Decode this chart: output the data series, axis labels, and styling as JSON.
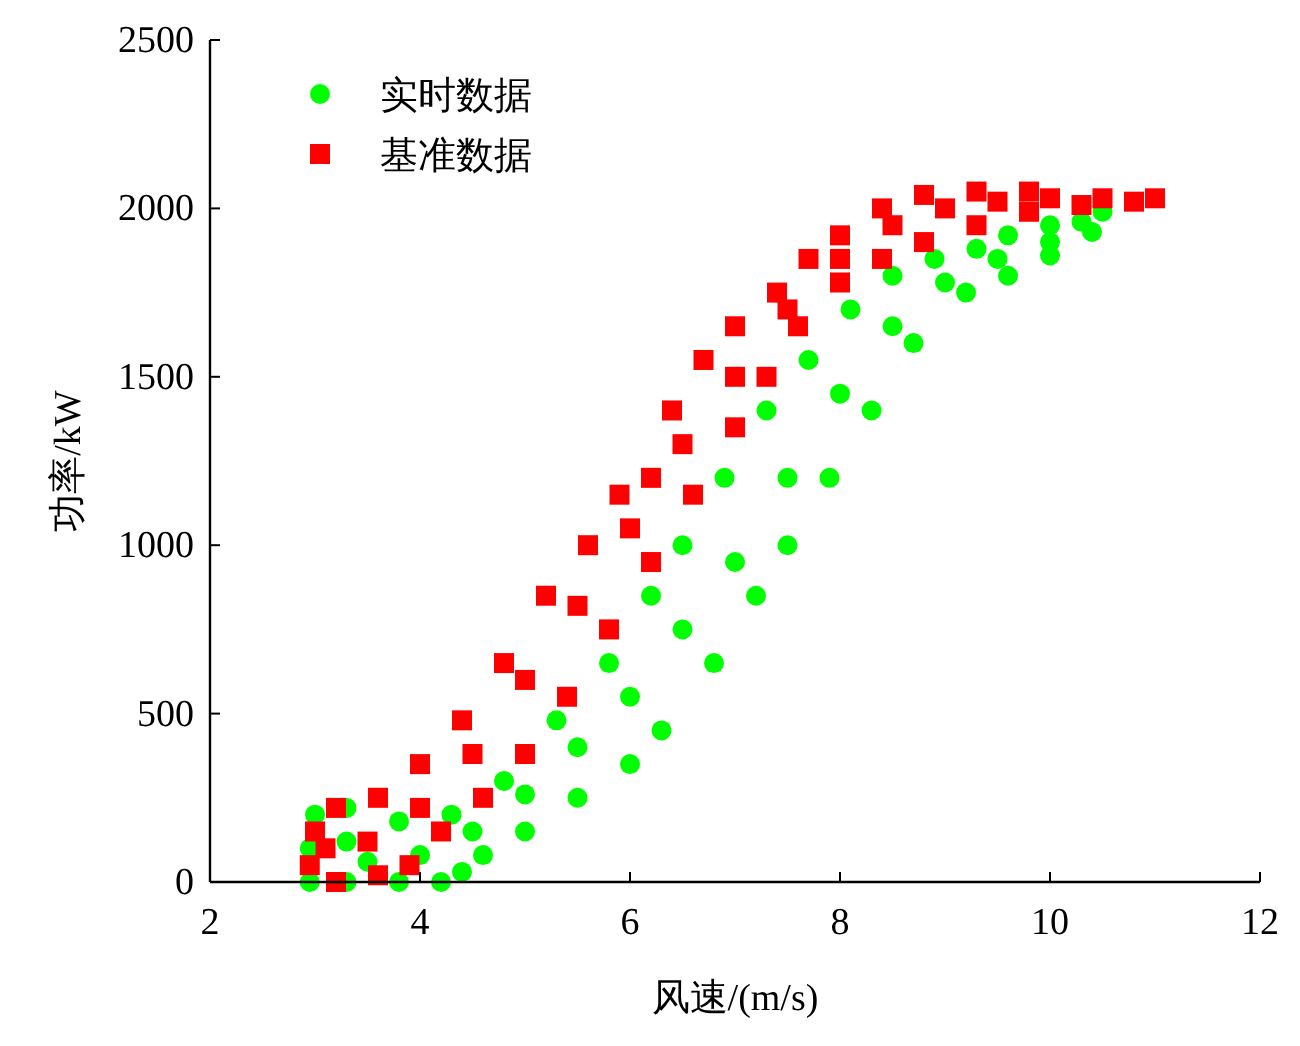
{
  "chart_data": {
    "type": "scatter",
    "xlabel": "风速/(m/s)",
    "ylabel": "功率/kW",
    "xlim": [
      2,
      12
    ],
    "xticks": [
      2,
      4,
      6,
      8,
      10,
      12
    ],
    "ylim": [
      0,
      2500
    ],
    "yticks": [
      0,
      500,
      1000,
      1500,
      2000,
      2500
    ],
    "grid": false,
    "legend": "top left",
    "series": [
      {
        "name": "实时数据",
        "color": "#00ff00",
        "marker": "circle",
        "x": [
          2.95,
          2.95,
          3.0,
          3.3,
          3.8,
          4.3,
          4.8,
          5.3,
          5.8,
          6.2,
          6.5,
          6.9,
          7.3,
          7.7,
          8.1,
          8.5,
          8.9,
          9.3,
          9.6,
          10,
          10.3,
          3.3,
          3.8,
          4.2,
          4.4,
          4.6,
          5,
          5.5,
          6,
          6.3,
          6.8,
          7.2,
          7.5,
          7.9,
          8.3,
          8.7,
          9.2,
          9.6,
          10,
          10.4,
          10.5,
          3.3,
          3.5,
          4,
          4.5,
          5,
          5.5,
          6,
          6.5,
          7,
          7.5,
          8,
          8.5,
          9,
          9.5,
          10
        ],
        "values": [
          0,
          100,
          200,
          220,
          180,
          200,
          300,
          480,
          650,
          850,
          1000,
          1200,
          1400,
          1550,
          1700,
          1800,
          1850,
          1880,
          1920,
          1950,
          1960,
          0,
          0,
          0,
          30,
          80,
          150,
          250,
          350,
          450,
          650,
          850,
          1000,
          1200,
          1400,
          1600,
          1750,
          1800,
          1860,
          1930,
          1990,
          120,
          60,
          80,
          150,
          260,
          400,
          550,
          750,
          950,
          1200,
          1450,
          1650,
          1780,
          1850,
          1900
        ]
      },
      {
        "name": "基准数据",
        "color": "#ff0000",
        "marker": "square",
        "x": [
          2.95,
          3.0,
          3.2,
          3.6,
          4.0,
          4.4,
          4.8,
          5.2,
          5.6,
          5.9,
          6.2,
          6.4,
          6.7,
          7.0,
          7.4,
          7.7,
          8.0,
          8.4,
          8.8,
          9.3,
          9.8,
          3.2,
          3.6,
          3.9,
          4.2,
          4.6,
          5,
          5.4,
          5.8,
          6.2,
          6.6,
          7,
          7.3,
          7.6,
          8,
          8.4,
          8.8,
          9.3,
          9.8,
          10.3,
          10.8,
          11,
          3.1,
          3.5,
          4,
          4.5,
          5,
          5.5,
          6,
          6.5,
          7,
          7.5,
          8,
          8.5,
          9,
          9.5,
          10,
          10.5
        ],
        "values": [
          50,
          150,
          220,
          250,
          350,
          480,
          650,
          850,
          1000,
          1150,
          1200,
          1400,
          1550,
          1650,
          1750,
          1850,
          1920,
          2000,
          2040,
          2050,
          2050,
          0,
          20,
          50,
          150,
          250,
          380,
          550,
          750,
          950,
          1150,
          1350,
          1500,
          1650,
          1780,
          1850,
          1900,
          1950,
          1990,
          2010,
          2020,
          2030,
          100,
          120,
          220,
          380,
          600,
          820,
          1050,
          1300,
          1500,
          1700,
          1850,
          1950,
          2000,
          2020,
          2030,
          2030
        ]
      }
    ]
  }
}
